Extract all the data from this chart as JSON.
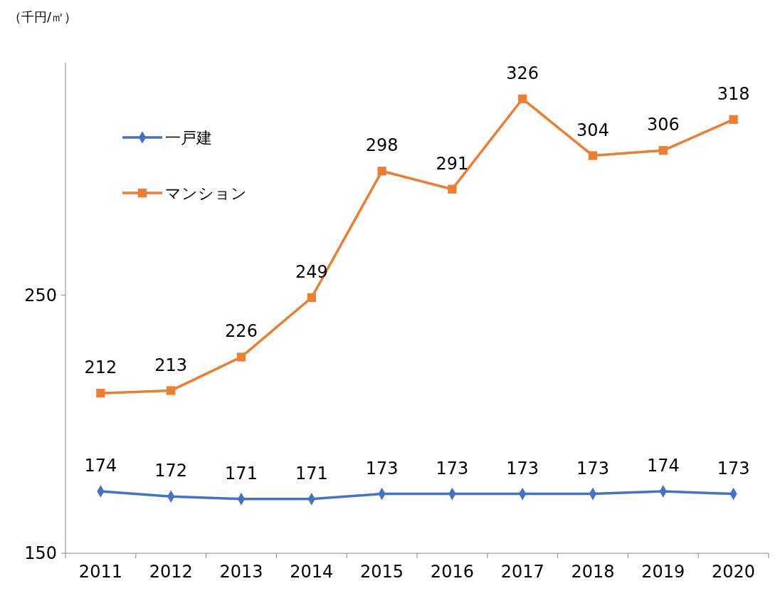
{
  "chart_data": {
    "type": "line",
    "ylabel": "（千円/㎡）",
    "categories": [
      "2011",
      "2012",
      "2013",
      "2014",
      "2015",
      "2016",
      "2017",
      "2018",
      "2019",
      "2020"
    ],
    "series": [
      {
        "name": "一戸建",
        "color": "#4472c4",
        "marker": "diamond",
        "values": [
          174,
          172,
          171,
          171,
          173,
          173,
          173,
          173,
          174,
          173
        ]
      },
      {
        "name": "マンション",
        "color": "#ed7d31",
        "marker": "square",
        "values": [
          212,
          213,
          226,
          249,
          298,
          291,
          326,
          304,
          306,
          318
        ]
      }
    ],
    "ylim": [
      150,
      340
    ],
    "yticks": [
      150,
      250
    ],
    "data_labels": true,
    "legend": "top left",
    "grid": false
  }
}
